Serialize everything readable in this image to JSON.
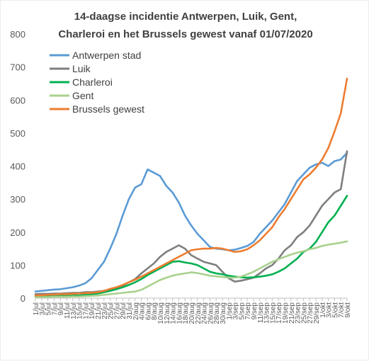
{
  "chart_data": {
    "type": "line",
    "title_lines": [
      "14-daagse incidentie  Antwerpen,  Luik, Gent,",
      "Charleroi  en het Brussels gewest vanaf 01/07/2020"
    ],
    "xlabel": "",
    "ylabel": "",
    "ylim": [
      0,
      800
    ],
    "yticks": [
      0,
      100,
      200,
      300,
      400,
      500,
      600,
      700,
      800
    ],
    "legend_position": "top-left inside plot",
    "grid": false,
    "x": [
      "1/jul",
      "3/jul",
      "5/jul",
      "7/jul",
      "9/jul",
      "11/jul",
      "13/jul",
      "15/jul",
      "17/jul",
      "19/jul",
      "21/jul",
      "23/jul",
      "25/jul",
      "27/jul",
      "29/jul",
      "31/jul",
      "2/aug",
      "4/aug",
      "6/aug",
      "8/aug",
      "10/aug",
      "12/aug",
      "14/aug",
      "16/aug",
      "18/aug",
      "20/aug",
      "22/aug",
      "24/aug",
      "26/aug",
      "28/aug",
      "30/aug",
      "1/sep",
      "3/sep",
      "5/sep",
      "7/sep",
      "9/sep",
      "11/sep",
      "13/sep",
      "15/sep",
      "17/sep",
      "19/sep",
      "21/sep",
      "23/sep",
      "25/sep",
      "27/sep",
      "29/sep",
      "1/okt",
      "3/okt",
      "5/okt",
      "7/okt",
      "9/okt"
    ],
    "series": [
      {
        "name": "Antwerpen stad",
        "color": "#5B9BD5",
        "values": [
          20,
          22,
          24,
          26,
          27,
          30,
          33,
          38,
          45,
          60,
          85,
          110,
          150,
          195,
          250,
          300,
          335,
          345,
          390,
          380,
          370,
          340,
          320,
          290,
          250,
          220,
          195,
          175,
          155,
          150,
          148,
          145,
          147,
          152,
          158,
          170,
          195,
          215,
          235,
          260,
          285,
          320,
          355,
          375,
          395,
          405,
          410,
          400,
          415,
          420,
          440
        ]
      },
      {
        "name": "Luik",
        "color": "#7F7F7F",
        "values": [
          12,
          13,
          13,
          14,
          14,
          15,
          16,
          16,
          18,
          18,
          20,
          22,
          26,
          30,
          38,
          48,
          58,
          75,
          90,
          105,
          125,
          140,
          150,
          160,
          150,
          130,
          120,
          110,
          105,
          100,
          80,
          60,
          50,
          53,
          57,
          62,
          75,
          90,
          100,
          120,
          145,
          160,
          185,
          200,
          220,
          250,
          280,
          300,
          320,
          330,
          445
        ]
      },
      {
        "name": "Charleroi",
        "color": "#00B050",
        "values": [
          5,
          5,
          6,
          6,
          7,
          7,
          8,
          8,
          10,
          12,
          14,
          18,
          22,
          27,
          33,
          40,
          48,
          58,
          70,
          80,
          90,
          100,
          110,
          112,
          108,
          105,
          100,
          90,
          80,
          75,
          72,
          68,
          65,
          63,
          62,
          63,
          65,
          68,
          72,
          80,
          90,
          105,
          120,
          140,
          150,
          170,
          200,
          230,
          250,
          280,
          310
        ]
      },
      {
        "name": "Gent",
        "color": "#A9D18E",
        "values": [
          3,
          3,
          3,
          4,
          4,
          4,
          5,
          5,
          6,
          7,
          8,
          10,
          12,
          14,
          16,
          18,
          20,
          25,
          35,
          45,
          55,
          62,
          68,
          72,
          75,
          78,
          76,
          72,
          68,
          66,
          64,
          62,
          62,
          65,
          72,
          80,
          90,
          100,
          110,
          118,
          125,
          132,
          138,
          142,
          148,
          152,
          158,
          162,
          165,
          168,
          172
        ]
      },
      {
        "name": "Brussels gewest",
        "color": "#ED7D31",
        "values": [
          8,
          9,
          10,
          11,
          12,
          12,
          13,
          14,
          15,
          16,
          18,
          22,
          28,
          33,
          40,
          48,
          56,
          65,
          75,
          85,
          95,
          105,
          115,
          125,
          135,
          145,
          148,
          150,
          150,
          152,
          150,
          145,
          140,
          142,
          148,
          160,
          175,
          195,
          215,
          245,
          270,
          300,
          330,
          360,
          375,
          395,
          420,
          455,
          505,
          560,
          665
        ]
      }
    ]
  }
}
